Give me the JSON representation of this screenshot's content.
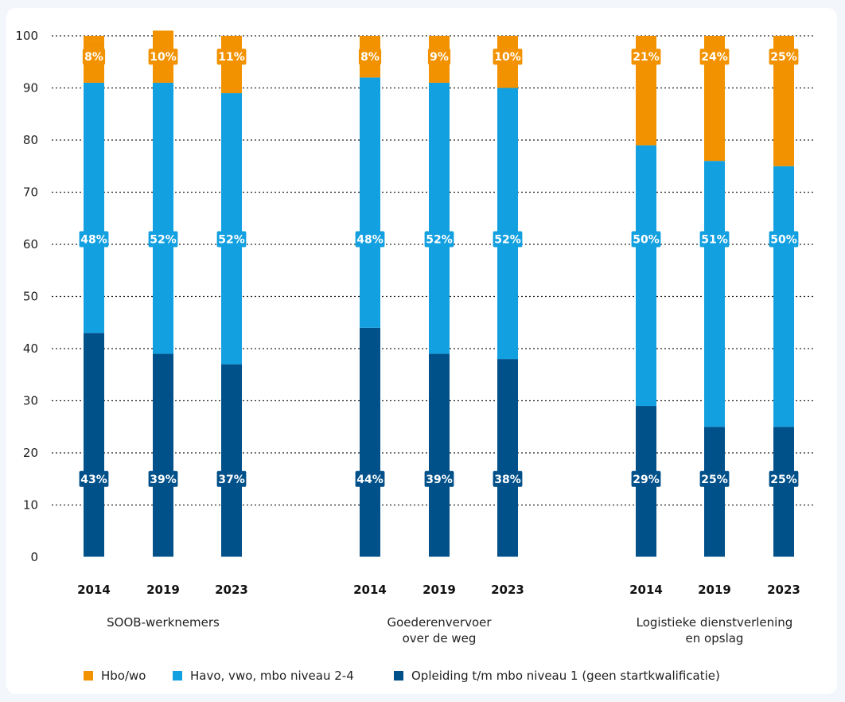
{
  "colors": {
    "hbo_wo": "#f39200",
    "havo_mbo": "#12a0e0",
    "mbo1": "#00508a",
    "grid": "#222222",
    "label_text": "#ffffff"
  },
  "chart_data": {
    "type": "bar",
    "stacked": true,
    "title": "",
    "ylabel": "",
    "ylim": [
      0,
      100
    ],
    "yticks": [
      0,
      10,
      20,
      30,
      40,
      50,
      60,
      70,
      80,
      90,
      100
    ],
    "grid": "dotted horizontal",
    "legend_position": "bottom",
    "groups": [
      {
        "name": "SOOB-werknemers",
        "name_lines": [
          "SOOB-werknemers"
        ],
        "years": [
          "2014",
          "2019",
          "2023"
        ],
        "series": [
          {
            "key": "mbo1",
            "values": [
              43,
              39,
              37
            ],
            "labels": [
              "43%",
              "39%",
              "37%"
            ]
          },
          {
            "key": "havo_mbo",
            "values": [
              48,
              52,
              52
            ],
            "labels": [
              "48%",
              "52%",
              "52%"
            ]
          },
          {
            "key": "hbo_wo",
            "values": [
              8,
              10,
              11
            ],
            "labels": [
              "8%",
              "10%",
              "11%"
            ]
          }
        ]
      },
      {
        "name": "Goederenvervoer over de weg",
        "name_lines": [
          "Goederenvervoer",
          "over de weg"
        ],
        "years": [
          "2014",
          "2019",
          "2023"
        ],
        "series": [
          {
            "key": "mbo1",
            "values": [
              44,
              39,
              38
            ],
            "labels": [
              "44%",
              "39%",
              "38%"
            ]
          },
          {
            "key": "havo_mbo",
            "values": [
              48,
              52,
              52
            ],
            "labels": [
              "48%",
              "52%",
              "52%"
            ]
          },
          {
            "key": "hbo_wo",
            "values": [
              8,
              9,
              10
            ],
            "labels": [
              "8%",
              "9%",
              "10%"
            ]
          }
        ]
      },
      {
        "name": "Logistieke dienstverlening en opslag",
        "name_lines": [
          "Logistieke dienstverlening",
          "en opslag"
        ],
        "years": [
          "2014",
          "2019",
          "2023"
        ],
        "series": [
          {
            "key": "mbo1",
            "values": [
              29,
              25,
              25
            ],
            "labels": [
              "29%",
              "25%",
              "25%"
            ]
          },
          {
            "key": "havo_mbo",
            "values": [
              50,
              51,
              50
            ],
            "labels": [
              "50%",
              "51%",
              "50%"
            ]
          },
          {
            "key": "hbo_wo",
            "values": [
              21,
              24,
              25
            ],
            "labels": [
              "21%",
              "24%",
              "25%"
            ]
          }
        ]
      }
    ],
    "legend": [
      {
        "key": "hbo_wo",
        "name": "Hbo/wo"
      },
      {
        "key": "havo_mbo",
        "name": "Havo, vwo, mbo niveau 2-4"
      },
      {
        "key": "mbo1",
        "name": "Opleiding t/m mbo niveau 1 (geen startkwalificatie)"
      }
    ]
  }
}
